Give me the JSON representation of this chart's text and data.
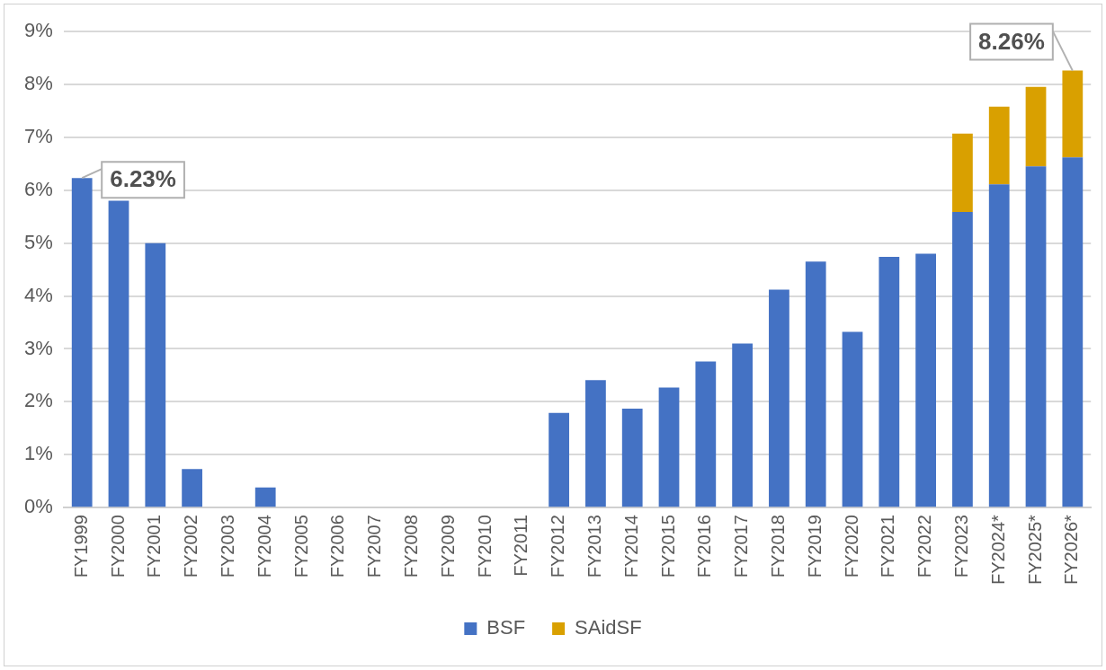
{
  "chart_data": {
    "type": "bar",
    "stacked": true,
    "categories": [
      "FY1999",
      "FY2000",
      "FY2001",
      "FY2002",
      "FY2003",
      "FY2004",
      "FY2005",
      "FY2006",
      "FY2007",
      "FY2008",
      "FY2009",
      "FY2010",
      "FY2011",
      "FY2012",
      "FY2013",
      "FY2014",
      "FY2015",
      "FY2016",
      "FY2017",
      "FY2018",
      "FY2019",
      "FY2020",
      "FY2021",
      "FY2022",
      "FY2023",
      "FY2024*",
      "FY2025*",
      "FY2026*"
    ],
    "series": [
      {
        "name": "BSF",
        "color": "#4472c4",
        "values": [
          6.23,
          5.8,
          5.0,
          0.73,
          0,
          0.38,
          0,
          0,
          0,
          0,
          0,
          0,
          0,
          1.79,
          2.41,
          1.87,
          2.27,
          2.76,
          3.1,
          4.12,
          4.65,
          3.32,
          4.74,
          4.8,
          5.59,
          6.11,
          6.45,
          6.62
        ]
      },
      {
        "name": "SAidSF",
        "color": "#d9a000",
        "values": [
          0,
          0,
          0,
          0,
          0,
          0,
          0,
          0,
          0,
          0,
          0,
          0,
          0,
          0,
          0,
          0,
          0,
          0,
          0,
          0,
          0,
          0,
          0,
          0,
          1.48,
          1.47,
          1.5,
          1.64
        ]
      }
    ],
    "ylim": [
      0,
      9
    ],
    "yticks": [
      {
        "value": 0,
        "label": "0%"
      },
      {
        "value": 1,
        "label": "1%"
      },
      {
        "value": 2,
        "label": "2%"
      },
      {
        "value": 3,
        "label": "3%"
      },
      {
        "value": 4,
        "label": "4%"
      },
      {
        "value": 5,
        "label": "5%"
      },
      {
        "value": 6,
        "label": "6%"
      },
      {
        "value": 7,
        "label": "7%"
      },
      {
        "value": 8,
        "label": "8%"
      },
      {
        "value": 9,
        "label": "9%"
      }
    ],
    "grid": "y",
    "legend": "bottom",
    "annotations": [
      {
        "text": "6.23%",
        "x": "FY1999",
        "y": 6.23
      },
      {
        "text": "8.26%",
        "x": "FY2026*",
        "y": 8.26
      }
    ]
  }
}
